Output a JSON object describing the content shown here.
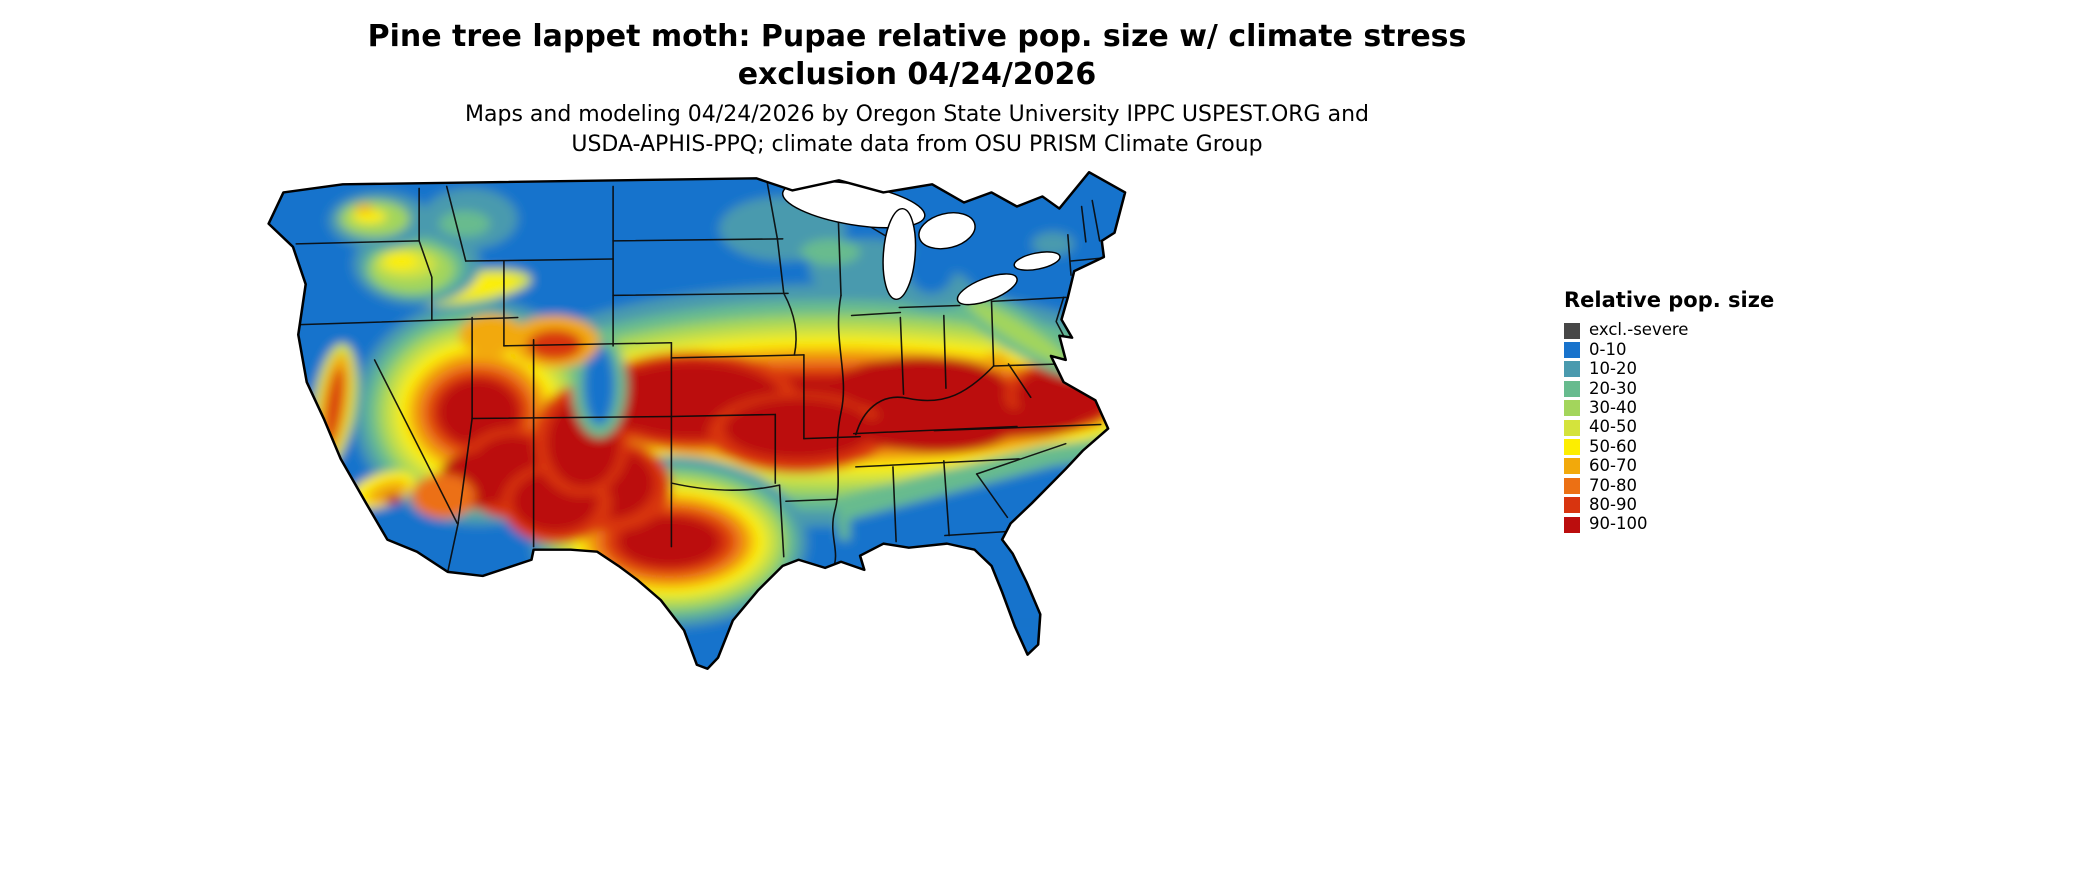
{
  "figure": {
    "title_line1": "Pine tree lappet moth: Pupae relative pop. size w/ climate stress",
    "title_line2": "exclusion 04/24/2026",
    "subtitle_line1": "Maps and modeling 04/24/2026 by Oregon State University IPPC USPEST.ORG and",
    "subtitle_line2": "USDA-APHIS-PPQ; climate data from OSU PRISM Climate Group"
  },
  "map": {
    "description": "Continental United States raster map of pupae relative population size with climate stress exclusion; state boundaries in black, water in white",
    "outline_color": "#000000",
    "water_color": "#ffffff"
  },
  "legend": {
    "title": "Relative pop. size",
    "entries": [
      {
        "label": "excl.-severe",
        "key": "severe",
        "color": "#474747"
      },
      {
        "label": "0-10",
        "key": "b0",
        "color": "#1873cc"
      },
      {
        "label": "10-20",
        "key": "b10",
        "color": "#4a9aae"
      },
      {
        "label": "20-30",
        "key": "b20",
        "color": "#67bb8e"
      },
      {
        "label": "30-40",
        "key": "b30",
        "color": "#a3d55c"
      },
      {
        "label": "40-50",
        "key": "b40",
        "color": "#d4e33c"
      },
      {
        "label": "50-60",
        "key": "b50",
        "color": "#fdee00"
      },
      {
        "label": "60-70",
        "key": "b60",
        "color": "#f2a90b"
      },
      {
        "label": "70-80",
        "key": "b70",
        "color": "#ec7014"
      },
      {
        "label": "80-90",
        "key": "b80",
        "color": "#d8340f"
      },
      {
        "label": "90-100",
        "key": "b90",
        "color": "#bb0d0d"
      }
    ]
  }
}
